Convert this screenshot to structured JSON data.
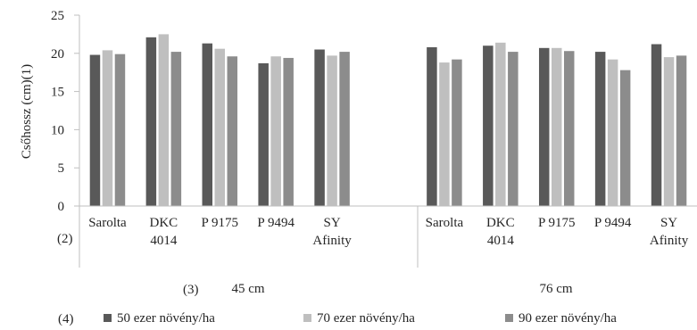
{
  "chart_data": {
    "type": "bar",
    "ylabel": "Csőhossz (cm)(1)",
    "ylim": [
      0,
      25
    ],
    "yticks": [
      0,
      5,
      10,
      15,
      20,
      25
    ],
    "grid": false,
    "row_markers": [
      "(2)",
      "(3)",
      "(4)"
    ],
    "groups": [
      {
        "label": "45 cm",
        "categories": [
          "Sarolta",
          "DKC 4014",
          "P 9175",
          "P 9494",
          "SY Afinity"
        ]
      },
      {
        "label": "76 cm",
        "categories": [
          "Sarolta",
          "DKC 4014",
          "P 9175",
          "P 9494",
          "SY Afinity"
        ]
      }
    ],
    "series": [
      {
        "name": "50 ezer növény/ha",
        "color": "#595959",
        "values": [
          19.8,
          22.1,
          21.3,
          18.7,
          20.5,
          20.8,
          21.0,
          20.7,
          20.2,
          21.2
        ]
      },
      {
        "name": "70 ezer növény/ha",
        "color": "#bfbfbf",
        "values": [
          20.4,
          22.5,
          20.6,
          19.6,
          19.7,
          18.8,
          21.4,
          20.7,
          19.2,
          19.5
        ]
      },
      {
        "name": "90 ezer növény/ha",
        "color": "#8c8c8c",
        "values": [
          19.9,
          20.2,
          19.6,
          19.4,
          20.2,
          19.2,
          20.2,
          20.3,
          17.8,
          19.7
        ]
      }
    ],
    "legend": "bottom"
  }
}
